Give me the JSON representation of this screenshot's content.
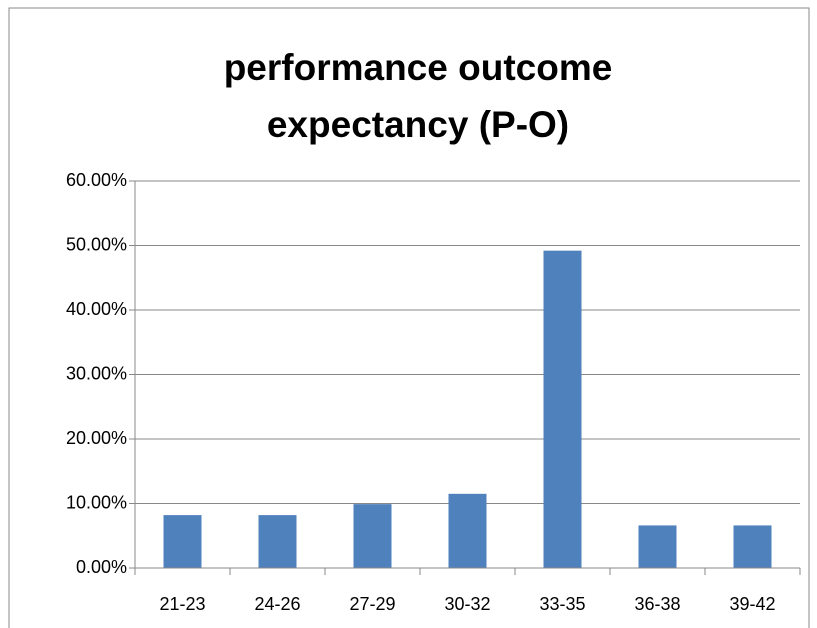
{
  "chart_data": {
    "type": "bar",
    "title": [
      "performance outcome",
      "expectancy (P-O)"
    ],
    "categories": [
      "21-23",
      "24-26",
      "27-29",
      "30-32",
      "33-35",
      "36-38",
      "39-42"
    ],
    "values": [
      8.2,
      8.2,
      9.9,
      11.5,
      49.2,
      6.6,
      6.6
    ],
    "color": "#4f81bd",
    "ylim": [
      0,
      60
    ],
    "yticks": [
      {
        "value": 0,
        "label": "0.00%"
      },
      {
        "value": 10,
        "label": "10.00%"
      },
      {
        "value": 20,
        "label": "20.00%"
      },
      {
        "value": 30,
        "label": "30.00%"
      },
      {
        "value": 40,
        "label": "40.00%"
      },
      {
        "value": 50,
        "label": "50.00%"
      },
      {
        "value": 60,
        "label": "60.00%"
      }
    ],
    "grid": true
  }
}
